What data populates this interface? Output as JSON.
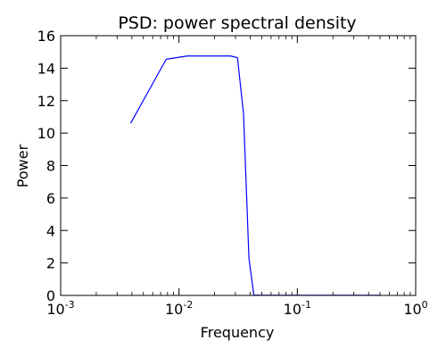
{
  "chart_data": {
    "type": "line",
    "title": "PSD: power spectral density",
    "xlabel": "Frequency",
    "ylabel": "Power",
    "x_scale": "log",
    "xlim": [
      0.001,
      1
    ],
    "ylim": [
      0,
      16
    ],
    "grid": false,
    "x_ticks": [
      {
        "value": 0.001,
        "base": "10",
        "exp": "-3"
      },
      {
        "value": 0.01,
        "base": "10",
        "exp": "-2"
      },
      {
        "value": 0.1,
        "base": "10",
        "exp": "-1"
      },
      {
        "value": 1,
        "base": "10",
        "exp": "0"
      }
    ],
    "y_ticks": [
      0,
      2,
      4,
      6,
      8,
      10,
      12,
      14,
      16
    ],
    "series": [
      {
        "color": "#0000ff",
        "x": [
          0.0039,
          0.0078,
          0.0117,
          0.0156,
          0.0195,
          0.0234,
          0.0273,
          0.0312,
          0.0351,
          0.039,
          0.0429,
          0.05,
          0.1,
          0.2,
          0.3,
          0.5
        ],
        "y": [
          10.6,
          14.55,
          14.75,
          14.75,
          14.75,
          14.75,
          14.75,
          14.65,
          11.2,
          2.3,
          0.02,
          0.01,
          0.01,
          0.01,
          0.01,
          0.01
        ]
      }
    ]
  }
}
